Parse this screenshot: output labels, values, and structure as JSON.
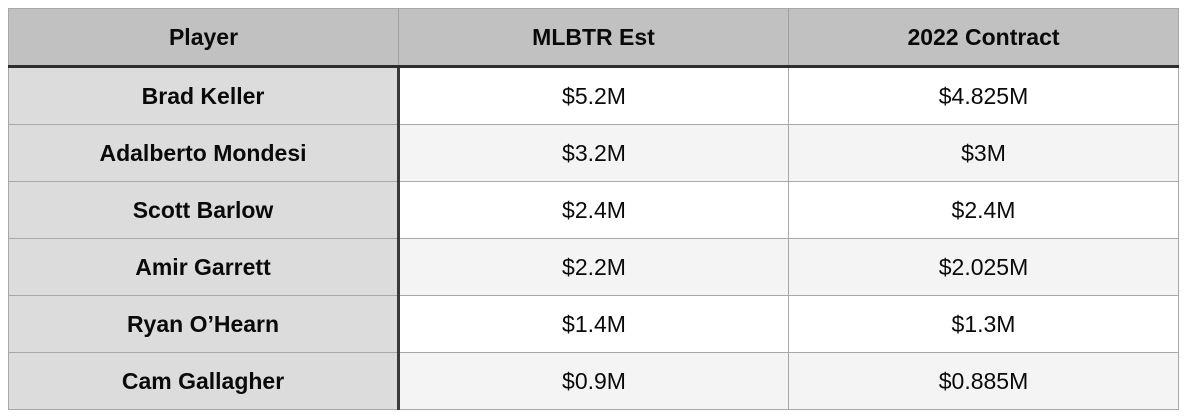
{
  "chart_data": {
    "type": "table",
    "title": "",
    "columns": [
      "Player",
      "MLBTR Est",
      "2022 Contract"
    ],
    "rows": [
      [
        "Brad Keller",
        "$5.2M",
        "$4.825M"
      ],
      [
        "Adalberto Mondesi",
        "$3.2M",
        "$3M"
      ],
      [
        "Scott Barlow",
        "$2.4M",
        "$2.4M"
      ],
      [
        "Amir Garrett",
        "$2.2M",
        "$2.025M"
      ],
      [
        "Ryan O’Hearn",
        "$1.4M",
        "$1.3M"
      ],
      [
        "Cam Gallagher",
        "$0.9M",
        "$0.885M"
      ]
    ]
  },
  "table": {
    "headers": {
      "player": "Player",
      "mlbtr_est": "MLBTR Est",
      "contract_2022": "2022 Contract"
    },
    "rows": [
      {
        "player": "Brad Keller",
        "mlbtr_est": "$5.2M",
        "contract_2022": "$4.825M"
      },
      {
        "player": "Adalberto Mondesi",
        "mlbtr_est": "$3.2M",
        "contract_2022": "$3M"
      },
      {
        "player": "Scott Barlow",
        "mlbtr_est": "$2.4M",
        "contract_2022": "$2.4M"
      },
      {
        "player": "Amir Garrett",
        "mlbtr_est": "$2.2M",
        "contract_2022": "$2.025M"
      },
      {
        "player": "Ryan O’Hearn",
        "mlbtr_est": "$1.4M",
        "contract_2022": "$1.3M"
      },
      {
        "player": "Cam Gallagher",
        "mlbtr_est": "$0.9M",
        "contract_2022": "$0.885M"
      }
    ]
  },
  "colors": {
    "header_bg": "#c0c1c0",
    "player_column_bg": "#dcdcdc",
    "value_row_bg": "#ffffff",
    "value_row_alt_bg": "#f4f4f4",
    "grid_line": "#a8a8a8",
    "header_divider": "#9e9e9e",
    "dark_line": "#2e2e2e",
    "text": "#0a0a0a",
    "page_bg": "#ffffff"
  }
}
